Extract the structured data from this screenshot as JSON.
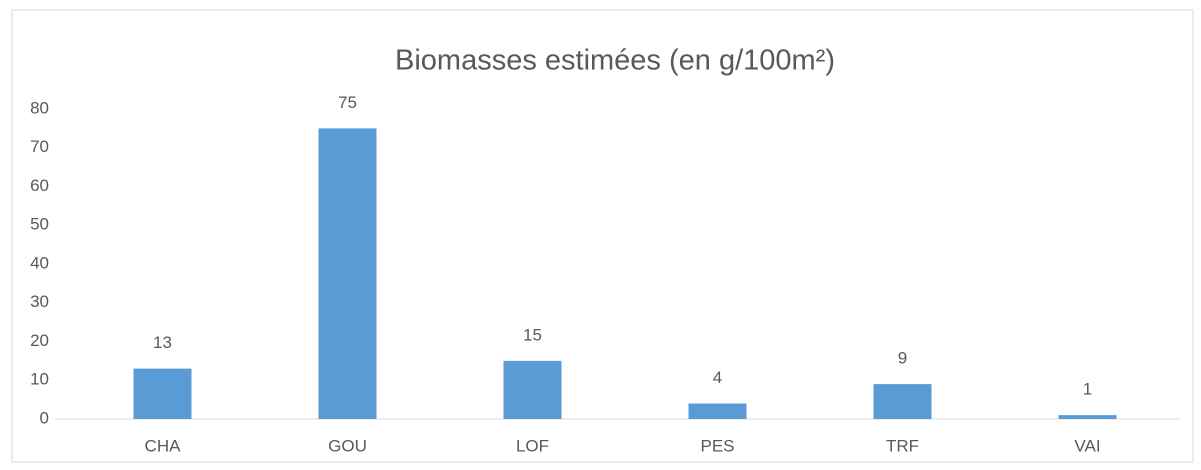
{
  "chart_data": {
    "type": "bar",
    "title": "Biomasses estimées (en g/100m²)",
    "categories": [
      "CHA",
      "GOU",
      "LOF",
      "PES",
      "TRF",
      "VAI"
    ],
    "values": [
      13,
      75,
      15,
      4,
      9,
      1
    ],
    "color": "#5b9bd5",
    "ylim": [
      0,
      80
    ],
    "yticks": [
      0,
      10,
      20,
      30,
      40,
      50,
      60,
      70,
      80
    ],
    "grid": false
  }
}
